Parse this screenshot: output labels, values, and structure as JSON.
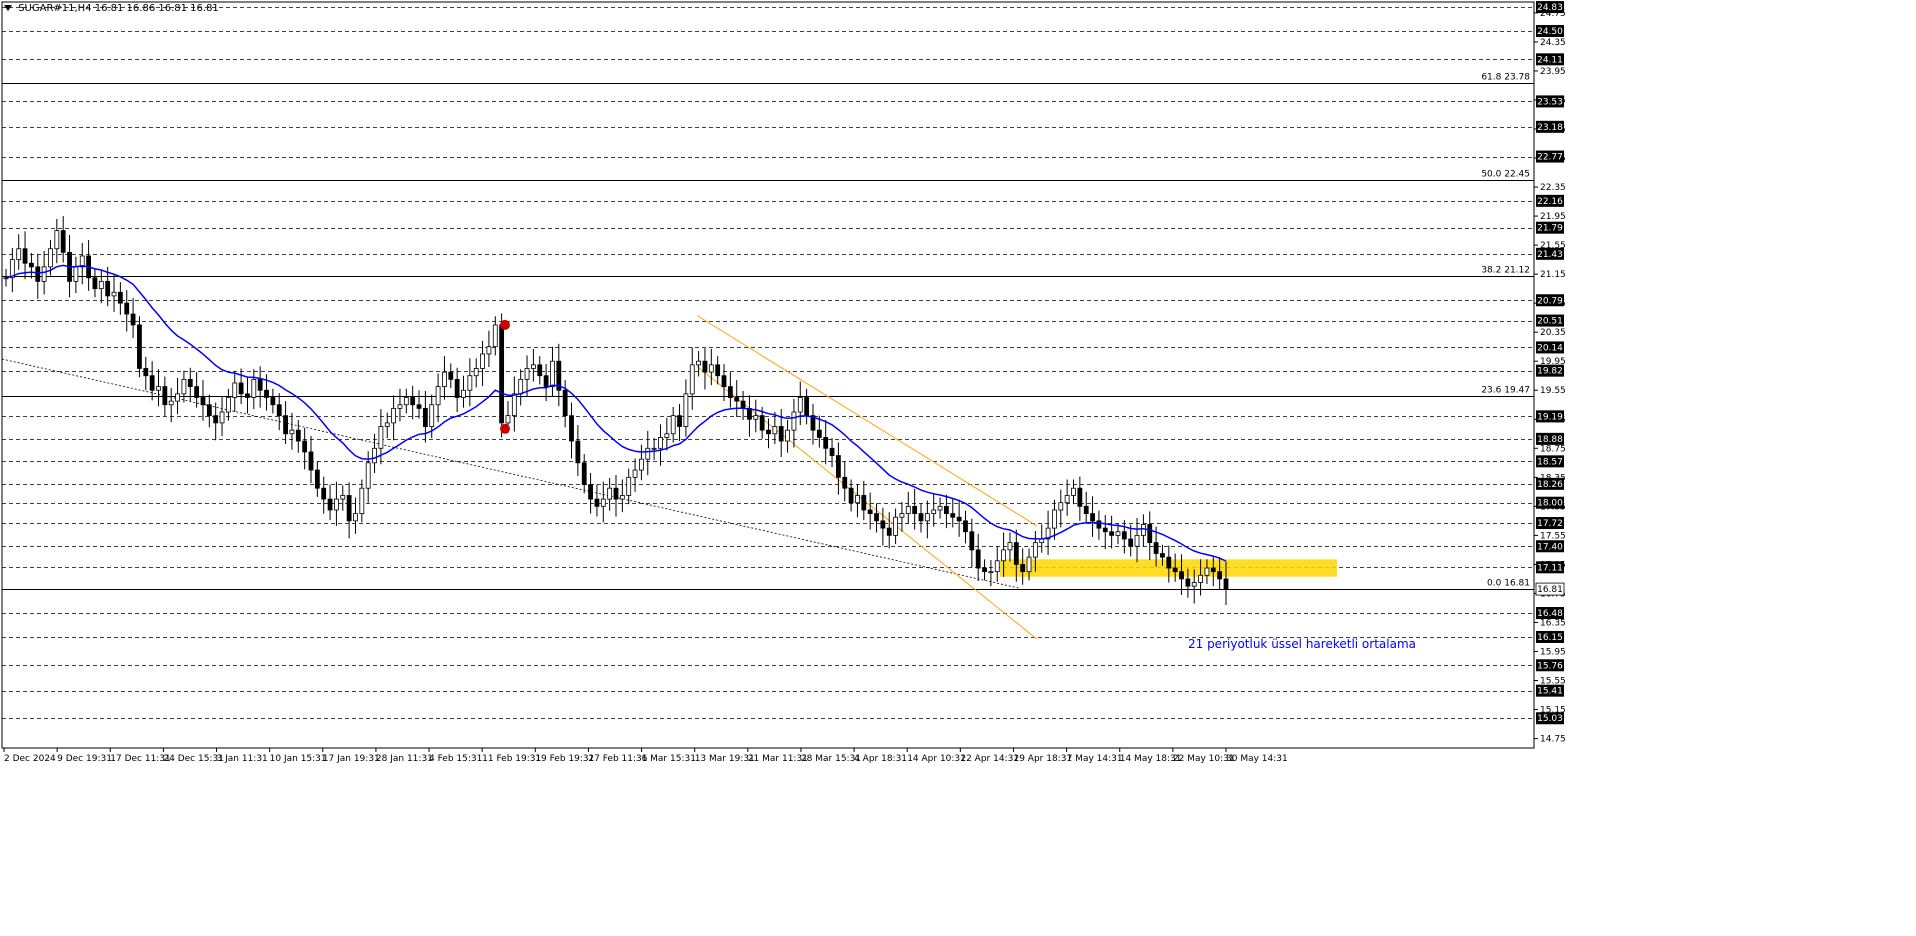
{
  "header": {
    "symbol": "SUGAR#11,H4",
    "ohlc": "16.81 16.86 16.81 16.81"
  },
  "colors": {
    "price_bar": "#000000",
    "ema": "#0000ff",
    "channel": "#ffa500",
    "zone": "#ffd700",
    "marker": "#cc0000",
    "grid": "#000000"
  },
  "chart_data": {
    "type": "candlestick",
    "y_range": [
      14.62,
      24.9
    ],
    "price_axis_labels": [
      "24.75",
      "24.35",
      "23.95",
      "23.55",
      "23.15",
      "22.75",
      "22.35",
      "21.95",
      "21.55",
      "21.15",
      "20.75",
      "20.35",
      "19.95",
      "19.55",
      "19.15",
      "18.75",
      "18.35",
      "17.95",
      "17.55",
      "17.15",
      "16.75",
      "16.35",
      "15.95",
      "15.55",
      "15.15",
      "14.75"
    ],
    "dashed_levels": [
      "24.83",
      "24.50",
      "24.11",
      "23.53",
      "23.18",
      "22.77",
      "22.16",
      "21.79",
      "21.43",
      "20.79",
      "20.51",
      "20.14",
      "19.82",
      "19.19",
      "18.88",
      "18.57",
      "18.26",
      "18.00",
      "17.72",
      "17.40",
      "17.11",
      "16.48",
      "16.15",
      "15.76",
      "15.41",
      "15.03"
    ],
    "fibonacci": [
      {
        "label": "61.8 23.78",
        "value": 23.78
      },
      {
        "label": "50.0 22.45",
        "value": 22.45
      },
      {
        "label": "38.2 21.12",
        "value": 21.12
      },
      {
        "label": "23.6 19.47",
        "value": 19.47
      },
      {
        "label": "0.0 16.81",
        "value": 16.81
      }
    ],
    "current_price": "16.81",
    "x_labels": [
      "2 Dec 2024",
      "9 Dec 19:31",
      "17 Dec 11:31",
      "24 Dec 15:31",
      "3 Jan 11:31",
      "10 Jan 15:31",
      "17 Jan 19:31",
      "28 Jan 11:31",
      "4 Feb 15:31",
      "11 Feb 19:31",
      "19 Feb 19:31",
      "27 Feb 11:31",
      "6 Mar 15:31",
      "13 Mar 19:31",
      "21 Mar 11:31",
      "28 Mar 15:31",
      "4 Apr 18:31",
      "14 Apr 10:31",
      "22 Apr 14:31",
      "29 Apr 18:31",
      "7 May 14:31",
      "14 May 18:31",
      "22 May 10:31",
      "30 May 14:31"
    ],
    "annotation": "21 periyotluk üssel hareketli ortalama",
    "close_path_points": [
      [
        0,
        21.1
      ],
      [
        1,
        21.35
      ],
      [
        2,
        21.5
      ],
      [
        3,
        21.3
      ],
      [
        4,
        21.25
      ],
      [
        5,
        21.05
      ],
      [
        6,
        21.25
      ],
      [
        7,
        21.5
      ],
      [
        8,
        21.75
      ],
      [
        9,
        21.45
      ],
      [
        10,
        21.05
      ],
      [
        11,
        21.25
      ],
      [
        12,
        21.4
      ],
      [
        13,
        21.1
      ],
      [
        14,
        20.95
      ],
      [
        15,
        21.05
      ],
      [
        16,
        20.85
      ],
      [
        17,
        20.9
      ],
      [
        18,
        20.75
      ],
      [
        19,
        20.6
      ],
      [
        20,
        20.45
      ],
      [
        21,
        19.85
      ],
      [
        22,
        19.75
      ],
      [
        23,
        19.55
      ],
      [
        24,
        19.6
      ],
      [
        25,
        19.35
      ],
      [
        26,
        19.4
      ],
      [
        27,
        19.5
      ],
      [
        28,
        19.7
      ],
      [
        29,
        19.6
      ],
      [
        30,
        19.45
      ],
      [
        31,
        19.35
      ],
      [
        32,
        19.2
      ],
      [
        33,
        19.1
      ],
      [
        34,
        19.25
      ],
      [
        35,
        19.45
      ],
      [
        36,
        19.65
      ],
      [
        37,
        19.5
      ],
      [
        38,
        19.45
      ],
      [
        39,
        19.7
      ],
      [
        40,
        19.55
      ],
      [
        41,
        19.45
      ],
      [
        42,
        19.35
      ],
      [
        43,
        19.2
      ],
      [
        44,
        18.95
      ],
      [
        45,
        19.0
      ],
      [
        46,
        18.85
      ],
      [
        47,
        18.7
      ],
      [
        48,
        18.45
      ],
      [
        49,
        18.2
      ],
      [
        50,
        18.05
      ],
      [
        51,
        17.9
      ],
      [
        52,
        18.05
      ],
      [
        53,
        18.1
      ],
      [
        54,
        17.75
      ],
      [
        55,
        17.85
      ],
      [
        56,
        18.2
      ],
      [
        57,
        18.55
      ],
      [
        58,
        18.75
      ],
      [
        59,
        19.05
      ],
      [
        60,
        19.1
      ],
      [
        61,
        19.3
      ],
      [
        62,
        19.35
      ],
      [
        63,
        19.45
      ],
      [
        64,
        19.35
      ],
      [
        65,
        19.3
      ],
      [
        66,
        19.05
      ],
      [
        67,
        19.35
      ],
      [
        68,
        19.6
      ],
      [
        69,
        19.8
      ],
      [
        70,
        19.7
      ],
      [
        71,
        19.45
      ],
      [
        72,
        19.55
      ],
      [
        73,
        19.75
      ],
      [
        74,
        19.85
      ],
      [
        75,
        20.05
      ],
      [
        76,
        20.15
      ],
      [
        77,
        20.45
      ],
      [
        78,
        19.1
      ],
      [
        79,
        19.2
      ],
      [
        80,
        19.5
      ],
      [
        81,
        19.7
      ],
      [
        82,
        19.85
      ],
      [
        83,
        19.9
      ],
      [
        84,
        19.75
      ],
      [
        85,
        19.6
      ],
      [
        86,
        19.95
      ],
      [
        87,
        19.55
      ],
      [
        88,
        19.2
      ],
      [
        89,
        18.85
      ],
      [
        90,
        18.55
      ],
      [
        91,
        18.25
      ],
      [
        92,
        18.05
      ],
      [
        93,
        17.95
      ],
      [
        94,
        18.05
      ],
      [
        95,
        18.2
      ],
      [
        96,
        18.05
      ],
      [
        97,
        18.1
      ],
      [
        98,
        18.35
      ],
      [
        99,
        18.45
      ],
      [
        100,
        18.6
      ],
      [
        101,
        18.75
      ],
      [
        102,
        18.75
      ],
      [
        103,
        18.9
      ],
      [
        104,
        18.95
      ],
      [
        105,
        19.2
      ],
      [
        106,
        19.05
      ],
      [
        107,
        19.5
      ],
      [
        108,
        19.9
      ],
      [
        109,
        19.95
      ],
      [
        110,
        19.8
      ],
      [
        111,
        19.9
      ],
      [
        112,
        19.75
      ],
      [
        113,
        19.6
      ],
      [
        114,
        19.45
      ],
      [
        115,
        19.4
      ],
      [
        116,
        19.3
      ],
      [
        117,
        19.15
      ],
      [
        118,
        19.2
      ],
      [
        119,
        19.0
      ],
      [
        120,
        18.95
      ],
      [
        121,
        19.05
      ],
      [
        122,
        18.85
      ],
      [
        123,
        19.0
      ],
      [
        124,
        19.25
      ],
      [
        125,
        19.45
      ],
      [
        126,
        19.2
      ],
      [
        127,
        19.0
      ],
      [
        128,
        18.9
      ],
      [
        129,
        18.75
      ],
      [
        130,
        18.65
      ],
      [
        131,
        18.35
      ],
      [
        132,
        18.2
      ],
      [
        133,
        18.0
      ],
      [
        134,
        18.1
      ],
      [
        135,
        17.9
      ],
      [
        136,
        17.85
      ],
      [
        137,
        17.75
      ],
      [
        138,
        17.65
      ],
      [
        139,
        17.55
      ],
      [
        140,
        17.8
      ],
      [
        141,
        17.85
      ],
      [
        142,
        17.95
      ],
      [
        143,
        17.85
      ],
      [
        144,
        17.75
      ],
      [
        145,
        17.85
      ],
      [
        146,
        17.9
      ],
      [
        147,
        17.95
      ],
      [
        148,
        17.85
      ],
      [
        149,
        17.8
      ],
      [
        150,
        17.75
      ],
      [
        151,
        17.6
      ],
      [
        152,
        17.35
      ],
      [
        153,
        17.1
      ],
      [
        154,
        17.05
      ],
      [
        155,
        17.05
      ],
      [
        156,
        17.2
      ],
      [
        157,
        17.35
      ],
      [
        158,
        17.45
      ],
      [
        159,
        17.15
      ],
      [
        160,
        17.05
      ],
      [
        161,
        17.25
      ],
      [
        162,
        17.45
      ],
      [
        163,
        17.5
      ],
      [
        164,
        17.65
      ],
      [
        165,
        17.9
      ],
      [
        166,
        18.0
      ],
      [
        167,
        18.1
      ],
      [
        168,
        18.2
      ],
      [
        169,
        17.95
      ],
      [
        170,
        17.85
      ],
      [
        171,
        17.75
      ],
      [
        172,
        17.65
      ],
      [
        173,
        17.6
      ],
      [
        174,
        17.55
      ],
      [
        175,
        17.6
      ],
      [
        176,
        17.5
      ],
      [
        177,
        17.4
      ],
      [
        178,
        17.55
      ],
      [
        179,
        17.7
      ],
      [
        180,
        17.45
      ],
      [
        181,
        17.3
      ],
      [
        182,
        17.25
      ],
      [
        183,
        17.1
      ],
      [
        184,
        17.05
      ],
      [
        185,
        16.95
      ],
      [
        186,
        16.85
      ],
      [
        187,
        16.9
      ],
      [
        188,
        17.0
      ],
      [
        189,
        17.1
      ],
      [
        190,
        17.05
      ],
      [
        191,
        16.95
      ],
      [
        192,
        16.81
      ]
    ]
  }
}
